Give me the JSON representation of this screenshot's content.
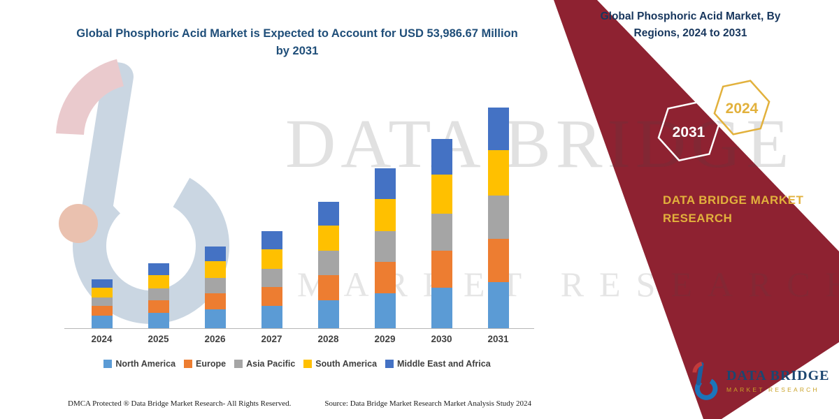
{
  "colors": {
    "ribbon_maroon": "#8E2231",
    "title_blue": "#1F4E79",
    "panel_navy": "#17365D",
    "brand_gold": "#E2B13C",
    "axis_gray": "#B7B7B7"
  },
  "chart_data": {
    "type": "bar",
    "stacked": true,
    "title": "Global Phosphoric Acid Market is Expected to Account for USD 53,986.67 Million by 2031",
    "units": "USD Million",
    "categories": [
      "2024",
      "2025",
      "2026",
      "2027",
      "2028",
      "2029",
      "2030",
      "2031"
    ],
    "series": [
      {
        "name": "North America",
        "color": "#5B9BD5",
        "values": [
          3000,
          3750,
          4600,
          5450,
          6800,
          8500,
          9900,
          11300
        ]
      },
      {
        "name": "Europe",
        "color": "#ED7D31",
        "values": [
          2450,
          3100,
          3900,
          4600,
          6150,
          7700,
          9050,
          10550
        ]
      },
      {
        "name": "Asia Pacific",
        "color": "#A5A5A5",
        "values": [
          2100,
          2900,
          3750,
          4450,
          5950,
          7500,
          9000,
          10550
        ]
      },
      {
        "name": "South America",
        "color": "#FFC000",
        "values": [
          2400,
          3250,
          4100,
          4800,
          6300,
          7850,
          9550,
          11240
        ]
      },
      {
        "name": "Middle East and Africa",
        "color": "#4472C4",
        "values": [
          2050,
          2900,
          3600,
          4400,
          5800,
          7500,
          8850,
          10346.67
        ]
      }
    ],
    "xlabel": "",
    "ylabel": "",
    "ylim": [
      0,
      55000
    ],
    "grid": false,
    "legend_position": "bottom",
    "values_estimated_from_bar_heights": true
  },
  "right_panel": {
    "title": "Global Phosphoric Acid Market, By Regions, 2024 to 2031",
    "hexagons": [
      {
        "label": "2031",
        "color": "#FFFFFF"
      },
      {
        "label": "2024",
        "color": "#E2B13C"
      }
    ],
    "brand": "DATA BRIDGE MARKET RESEARCH"
  },
  "watermark": {
    "line1": "DATA BRIDGE",
    "line2": "MARKET RESEARCH"
  },
  "footer": {
    "dmca": "DMCA Protected ® Data Bridge Market Research-  All Rights Reserved.",
    "source": "Source: Data Bridge Market Research  Market Analysis Study 2024"
  },
  "brand_logo": {
    "name": "DATA BRIDGE",
    "tagline": "MARKET RESEARCH"
  }
}
